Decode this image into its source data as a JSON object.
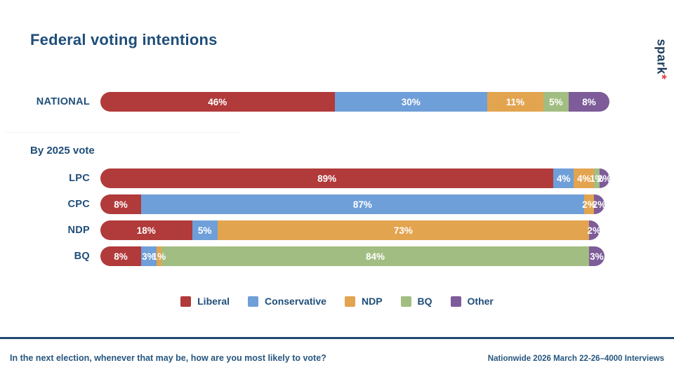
{
  "title": "Federal voting intentions",
  "logo": {
    "text": "spark",
    "asterisk": "*"
  },
  "section_label": "By 2025 vote",
  "footer": {
    "question": "In the next election, whenever that may be, how are you most likely to vote?",
    "source": "Nationwide 2026 March 22-26–4000 Interviews"
  },
  "chart_data": {
    "type": "bar",
    "stacked": true,
    "orientation": "horizontal",
    "title": "Federal voting intentions",
    "value_unit": "%",
    "xlim": [
      0,
      100
    ],
    "grid": false,
    "legend_position": "bottom-center",
    "series_names": [
      "Liberal",
      "Conservative",
      "NDP",
      "BQ",
      "Other"
    ],
    "colors": {
      "Liberal": "#b13a3b",
      "Conservative": "#6f9fd8",
      "NDP": "#e3a44f",
      "BQ": "#a2bd81",
      "Other": "#7d5c99"
    },
    "rows": [
      {
        "group": "national",
        "label": "NATIONAL",
        "segments": [
          {
            "party": "Liberal",
            "value": 46
          },
          {
            "party": "Conservative",
            "value": 30
          },
          {
            "party": "NDP",
            "value": 11
          },
          {
            "party": "BQ",
            "value": 5
          },
          {
            "party": "Other",
            "value": 8
          }
        ]
      },
      {
        "group": "by2025",
        "label": "LPC",
        "segments": [
          {
            "party": "Liberal",
            "value": 89
          },
          {
            "party": "Conservative",
            "value": 4
          },
          {
            "party": "NDP",
            "value": 4
          },
          {
            "party": "BQ",
            "value": 1
          },
          {
            "party": "Other",
            "value": 2
          }
        ]
      },
      {
        "group": "by2025",
        "label": "CPC",
        "segments": [
          {
            "party": "Liberal",
            "value": 8
          },
          {
            "party": "Conservative",
            "value": 87
          },
          {
            "party": "NDP",
            "value": 2
          },
          {
            "party": "Other",
            "value": 2
          }
        ]
      },
      {
        "group": "by2025",
        "label": "NDP",
        "segments": [
          {
            "party": "Liberal",
            "value": 18
          },
          {
            "party": "Conservative",
            "value": 5
          },
          {
            "party": "NDP",
            "value": 73
          },
          {
            "party": "Other",
            "value": 2
          }
        ]
      },
      {
        "group": "by2025",
        "label": "BQ",
        "segments": [
          {
            "party": "Liberal",
            "value": 8
          },
          {
            "party": "Conservative",
            "value": 3
          },
          {
            "party": "NDP",
            "value": 1
          },
          {
            "party": "BQ",
            "value": 84
          },
          {
            "party": "Other",
            "value": 3
          }
        ]
      }
    ],
    "legend": [
      {
        "label": "Liberal",
        "color": "#b13a3b"
      },
      {
        "label": "Conservative",
        "color": "#6f9fd8"
      },
      {
        "label": "NDP",
        "color": "#e3a44f"
      },
      {
        "label": "BQ",
        "color": "#a2bd81"
      },
      {
        "label": "Other",
        "color": "#7d5c99"
      }
    ]
  }
}
